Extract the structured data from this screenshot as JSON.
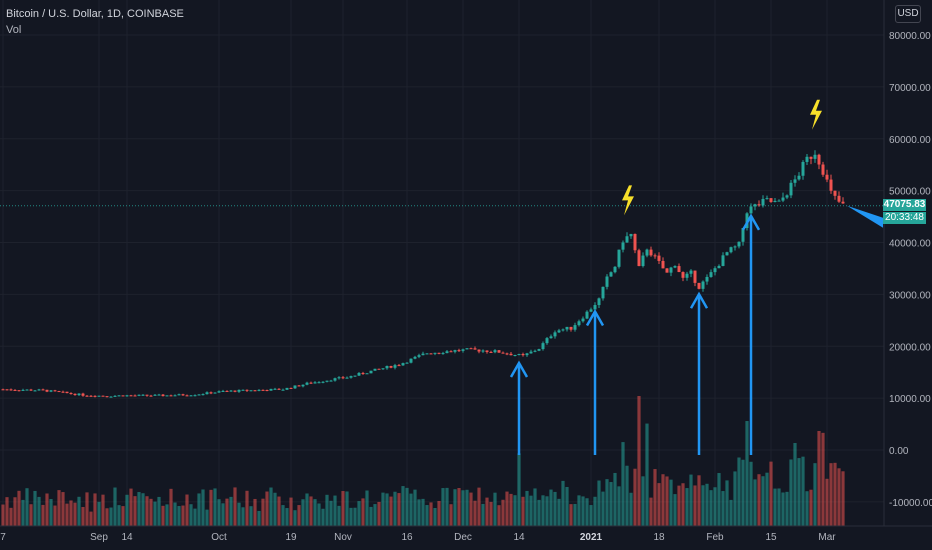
{
  "header": {
    "title": "Bitcoin / U.S. Dollar, 1D, COINBASE",
    "indicator": "Vol",
    "currency_button": "USD"
  },
  "price_tag": {
    "value": "47075.83",
    "countdown": "20:33:48"
  },
  "colors": {
    "background": "#131722",
    "up": "#26a69a",
    "down": "#ef5350",
    "arrow": "#2196f3",
    "lightning": "#f7e02a",
    "grid": "#1e222d"
  },
  "chart_data": {
    "type": "candlestick",
    "title": "Bitcoin / U.S. Dollar, 1D, COINBASE",
    "price_axis": {
      "labels": [
        "80000.00",
        "70000.00",
        "60000.00",
        "50000.00",
        "40000.00",
        "30000.00",
        "20000.00",
        "10000.00",
        "0.00",
        "-10000.00"
      ],
      "values": [
        80000,
        70000,
        60000,
        50000,
        40000,
        30000,
        20000,
        10000,
        0,
        -10000
      ],
      "ylim": [
        -13000,
        83500
      ]
    },
    "x_axis": {
      "labels": [
        "7",
        "Sep",
        "14",
        "Oct",
        "19",
        "Nov",
        "16",
        "Dec",
        "14",
        "2021",
        "18",
        "Feb",
        "15",
        "Mar"
      ],
      "day_index": [
        0,
        24,
        31,
        54,
        72,
        85,
        101,
        115,
        129,
        147,
        164,
        178,
        192,
        206
      ]
    },
    "grid": true,
    "close_anchors": [
      [
        0,
        11700
      ],
      [
        10,
        11500
      ],
      [
        20,
        10600
      ],
      [
        26,
        10400
      ],
      [
        30,
        10500
      ],
      [
        40,
        10500
      ],
      [
        48,
        10700
      ],
      [
        55,
        11300
      ],
      [
        62,
        11500
      ],
      [
        70,
        11700
      ],
      [
        76,
        12800
      ],
      [
        82,
        13600
      ],
      [
        86,
        14000
      ],
      [
        92,
        15200
      ],
      [
        99,
        16500
      ],
      [
        106,
        18700
      ],
      [
        112,
        19100
      ],
      [
        116,
        19300
      ],
      [
        120,
        19200
      ],
      [
        124,
        18900
      ],
      [
        130,
        18100
      ],
      [
        134,
        19600
      ],
      [
        138,
        23000
      ],
      [
        142,
        23500
      ],
      [
        146,
        26500
      ],
      [
        149,
        29000
      ],
      [
        151,
        33000
      ],
      [
        153,
        35500
      ],
      [
        155,
        40500
      ],
      [
        157,
        41500
      ],
      [
        159,
        35000
      ],
      [
        161,
        39000
      ],
      [
        163,
        37000
      ],
      [
        166,
        34000
      ],
      [
        168,
        36000
      ],
      [
        170,
        33000
      ],
      [
        172,
        34000
      ],
      [
        174,
        31500
      ],
      [
        176,
        33000
      ],
      [
        178,
        35000
      ],
      [
        181,
        38000
      ],
      [
        184,
        39500
      ],
      [
        186,
        46200
      ],
      [
        188,
        47000
      ],
      [
        191,
        48000
      ],
      [
        194,
        47500
      ],
      [
        198,
        52000
      ],
      [
        201,
        56000
      ],
      [
        203,
        57500
      ],
      [
        205,
        54000
      ],
      [
        207,
        49500
      ],
      [
        208,
        48500
      ],
      [
        210,
        47075
      ]
    ],
    "volume_scale_note": "volume bars shown in lower pane",
    "annotations": {
      "up_arrows_at_day": [
        129,
        148,
        174,
        187
      ],
      "lightning_at_day": [
        156,
        203
      ]
    }
  }
}
